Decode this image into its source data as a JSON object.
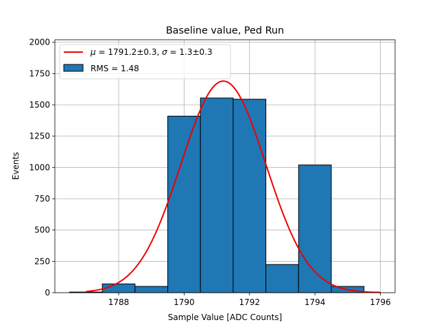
{
  "chart_data": {
    "type": "bar",
    "title": "Baseline value, Ped Run",
    "xlabel": "Sample Value [ADC Counts]",
    "ylabel": "Events",
    "xlim": [
      1786.05,
      1796.45
    ],
    "ylim": [
      0,
      2020
    ],
    "xticks": [
      1788,
      1790,
      1792,
      1794,
      1796
    ],
    "yticks": [
      0,
      250,
      500,
      750,
      1000,
      1250,
      1500,
      1750,
      2000
    ],
    "grid": true,
    "legend_position": "top-left",
    "histogram": {
      "name": "RMS = 1.48",
      "color": "#1f77b4",
      "bins": [
        {
          "left": 1786.5,
          "right": 1787.5,
          "count": 5
        },
        {
          "left": 1787.5,
          "right": 1788.5,
          "count": 70
        },
        {
          "left": 1788.5,
          "right": 1789.5,
          "count": 50
        },
        {
          "left": 1789.5,
          "right": 1790.5,
          "count": 1410
        },
        {
          "left": 1790.5,
          "right": 1791.5,
          "count": 1555
        },
        {
          "left": 1791.5,
          "right": 1792.5,
          "count": 1545
        },
        {
          "left": 1792.5,
          "right": 1793.5,
          "count": 225
        },
        {
          "left": 1793.5,
          "right": 1794.5,
          "count": 1020
        },
        {
          "left": 1794.5,
          "right": 1795.5,
          "count": 50
        }
      ]
    },
    "fit": {
      "name_math_1": "μ",
      "name_rest_1": " = 1791.2±0.3, ",
      "name_math_2": "σ",
      "name_rest_2": " = 1.3±0.3",
      "mu": 1791.2,
      "sigma": 1.3,
      "amplitude": 1690,
      "x_range": [
        1787.0,
        1796.0
      ],
      "color": "#ee0000"
    }
  }
}
